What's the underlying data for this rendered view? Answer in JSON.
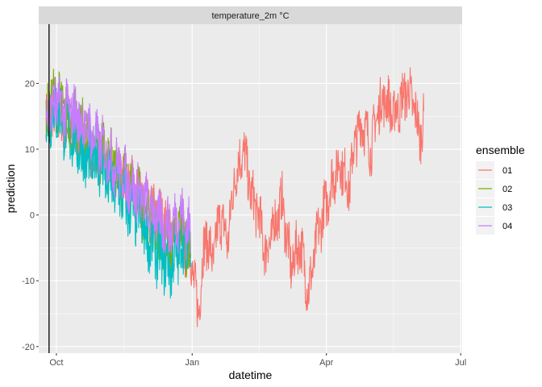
{
  "chart_data": {
    "type": "line",
    "facet_title": "temperature_2m °C",
    "xlabel": "datetime",
    "ylabel": "prediction",
    "x_ticks": [
      {
        "date": "2023-10-01",
        "label": "Oct"
      },
      {
        "date": "2024-01-01",
        "label": "Jan"
      },
      {
        "date": "2024-04-01",
        "label": "Apr"
      },
      {
        "date": "2024-07-01",
        "label": "Jul"
      }
    ],
    "y_ticks": [
      -20,
      -10,
      0,
      10,
      20
    ],
    "xlim": [
      "2023-09-19",
      "2024-07-02"
    ],
    "ylim": [
      -21,
      29
    ],
    "grid": true,
    "reference_date": "2023-09-26",
    "legend": {
      "title": "ensemble",
      "position": "right",
      "entries": [
        {
          "name": "01",
          "color": "#F8766D"
        },
        {
          "name": "02",
          "color": "#7CAE00"
        },
        {
          "name": "03",
          "color": "#00BFC4"
        },
        {
          "name": "04",
          "color": "#C77CFF"
        }
      ]
    },
    "series": [
      {
        "name": "01",
        "color": "#F8766D",
        "points": [
          [
            "2023-09-24",
            14
          ],
          [
            "2023-10-01",
            15
          ],
          [
            "2023-10-08",
            13
          ],
          [
            "2023-10-15",
            12
          ],
          [
            "2023-10-22",
            10
          ],
          [
            "2023-10-29",
            9
          ],
          [
            "2023-11-05",
            7
          ],
          [
            "2023-11-12",
            6
          ],
          [
            "2023-11-19",
            5
          ],
          [
            "2023-11-26",
            3
          ],
          [
            "2023-12-03",
            1
          ],
          [
            "2023-12-10",
            0
          ],
          [
            "2023-12-17",
            -2
          ],
          [
            "2023-12-24",
            -4
          ],
          [
            "2023-12-31",
            -6
          ],
          [
            "2024-01-05",
            -15
          ],
          [
            "2024-01-10",
            -3
          ],
          [
            "2024-01-15",
            -7
          ],
          [
            "2024-01-20",
            0
          ],
          [
            "2024-01-25",
            -4
          ],
          [
            "2024-01-30",
            6
          ],
          [
            "2024-02-05",
            10
          ],
          [
            "2024-02-10",
            3
          ],
          [
            "2024-02-15",
            0
          ],
          [
            "2024-02-20",
            -6
          ],
          [
            "2024-02-25",
            -2
          ],
          [
            "2024-03-02",
            2
          ],
          [
            "2024-03-08",
            -8
          ],
          [
            "2024-03-14",
            -4
          ],
          [
            "2024-03-20",
            -12
          ],
          [
            "2024-03-26",
            -3
          ],
          [
            "2024-04-01",
            2
          ],
          [
            "2024-04-06",
            6
          ],
          [
            "2024-04-11",
            8
          ],
          [
            "2024-04-16",
            4
          ],
          [
            "2024-04-21",
            12
          ],
          [
            "2024-04-26",
            14
          ],
          [
            "2024-05-01",
            10
          ],
          [
            "2024-05-06",
            16
          ],
          [
            "2024-05-11",
            18
          ],
          [
            "2024-05-16",
            15
          ],
          [
            "2024-05-21",
            17
          ],
          [
            "2024-05-26",
            19
          ],
          [
            "2024-05-31",
            16
          ],
          [
            "2024-06-03",
            12
          ],
          [
            "2024-06-06",
            14
          ]
        ],
        "noise": 3.8
      },
      {
        "name": "02",
        "color": "#7CAE00",
        "points": [
          [
            "2023-09-24",
            15
          ],
          [
            "2023-10-01",
            18
          ],
          [
            "2023-10-08",
            15
          ],
          [
            "2023-10-15",
            13
          ],
          [
            "2023-10-22",
            12
          ],
          [
            "2023-10-29",
            10
          ],
          [
            "2023-11-05",
            8
          ],
          [
            "2023-11-12",
            7
          ],
          [
            "2023-11-19",
            4
          ],
          [
            "2023-11-26",
            2
          ],
          [
            "2023-12-03",
            0
          ],
          [
            "2023-12-10",
            -3
          ],
          [
            "2023-12-17",
            -5
          ],
          [
            "2023-12-24",
            -2
          ],
          [
            "2023-12-31",
            -6
          ]
        ],
        "noise": 4.5
      },
      {
        "name": "03",
        "color": "#00BFC4",
        "points": [
          [
            "2023-09-24",
            14
          ],
          [
            "2023-10-01",
            16
          ],
          [
            "2023-10-08",
            13
          ],
          [
            "2023-10-15",
            11
          ],
          [
            "2023-10-22",
            8
          ],
          [
            "2023-10-29",
            9
          ],
          [
            "2023-11-05",
            5
          ],
          [
            "2023-11-12",
            4
          ],
          [
            "2023-11-19",
            1
          ],
          [
            "2023-11-26",
            0
          ],
          [
            "2023-12-03",
            -4
          ],
          [
            "2023-12-10",
            -6
          ],
          [
            "2023-12-17",
            -8
          ],
          [
            "2023-12-24",
            -5
          ],
          [
            "2023-12-31",
            -4
          ]
        ],
        "noise": 4.5
      },
      {
        "name": "04",
        "color": "#C77CFF",
        "points": [
          [
            "2023-09-24",
            15
          ],
          [
            "2023-10-01",
            17
          ],
          [
            "2023-10-08",
            16
          ],
          [
            "2023-10-15",
            15
          ],
          [
            "2023-10-22",
            13
          ],
          [
            "2023-10-29",
            11
          ],
          [
            "2023-11-05",
            9
          ],
          [
            "2023-11-12",
            7
          ],
          [
            "2023-11-19",
            5
          ],
          [
            "2023-11-26",
            3
          ],
          [
            "2023-12-03",
            1
          ],
          [
            "2023-12-10",
            -1
          ],
          [
            "2023-12-17",
            -2
          ],
          [
            "2023-12-24",
            0
          ],
          [
            "2023-12-31",
            -3
          ]
        ],
        "noise": 4.2
      }
    ]
  }
}
